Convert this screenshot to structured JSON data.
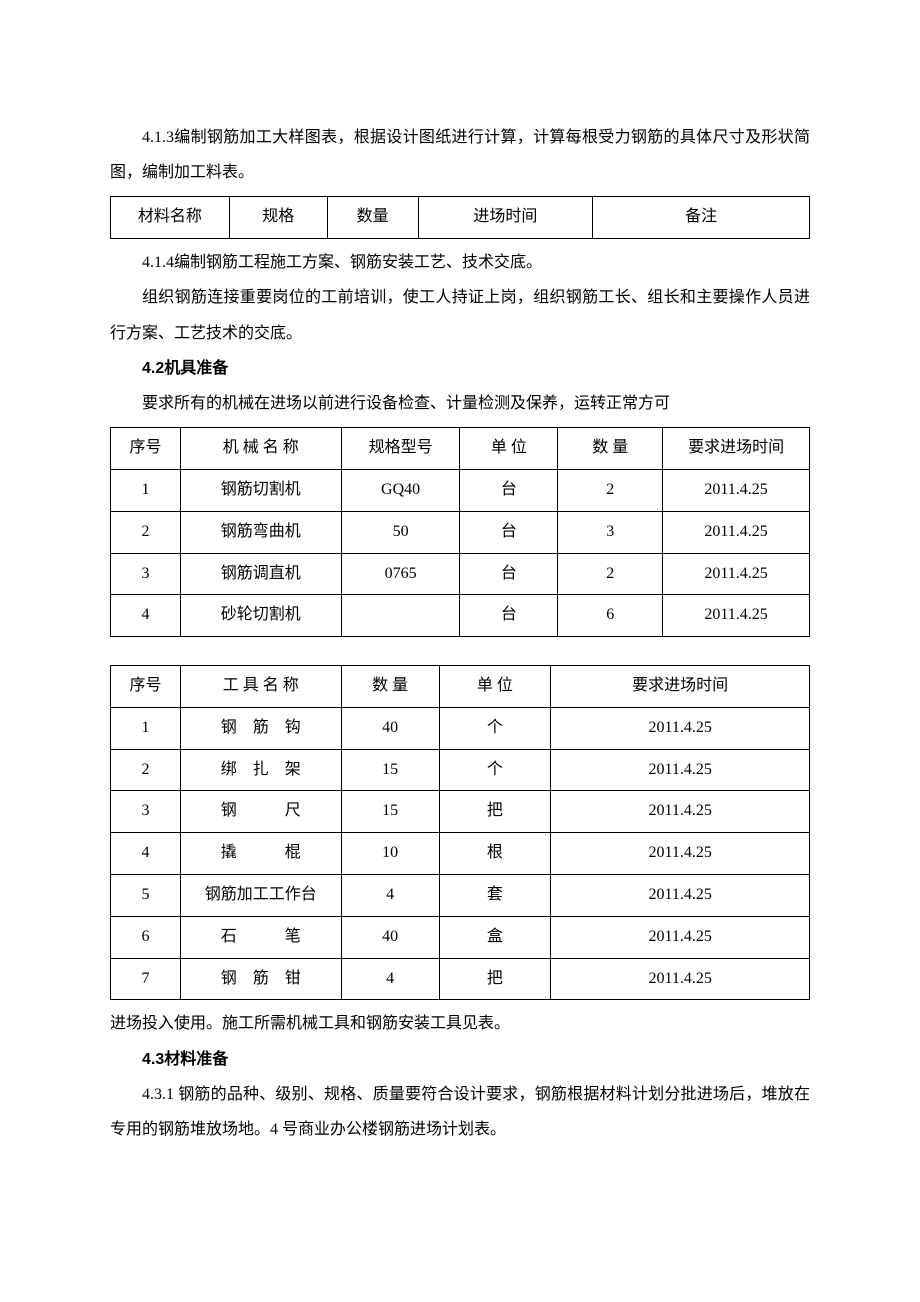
{
  "p413": "4.1.3编制钢筋加工大样图表，根据设计图纸进行计算，计算每根受力钢筋的具体尺寸及形状简图，编制加工料表。",
  "table1": {
    "headers": [
      "材料名称",
      "规格",
      "数量",
      "进场时间",
      "备注"
    ]
  },
  "p414": "4.1.4编制钢筋工程施工方案、钢筋安装工艺、技术交底。",
  "p414b": "组织钢筋连接重要岗位的工前培训，使工人持证上岗，组织钢筋工长、组长和主要操作人员进行方案、工艺技术的交底。",
  "h42": "4.2机具准备",
  "p42": "要求所有的机械在进场以前进行设备检查、计量检测及保养，运转正常方可",
  "table2": {
    "headers": [
      "序号",
      "机 械 名 称",
      "规格型号",
      "单 位",
      "数 量",
      "要求进场时间"
    ],
    "rows": [
      [
        "1",
        "钢筋切割机",
        "GQ40",
        "台",
        "2",
        "2011.4.25"
      ],
      [
        "2",
        "钢筋弯曲机",
        "50",
        "台",
        "3",
        "2011.4.25"
      ],
      [
        "3",
        "钢筋调直机",
        "0765",
        "台",
        "2",
        "2011.4.25"
      ],
      [
        "4",
        "砂轮切割机",
        "",
        "台",
        "6",
        "2011.4.25"
      ]
    ]
  },
  "table3": {
    "headers": [
      "序号",
      "工 具 名 称",
      "数 量",
      "单 位",
      "要求进场时间"
    ],
    "rows": [
      [
        "1",
        "钢　筋　钩",
        "40",
        "个",
        "2011.4.25"
      ],
      [
        "2",
        "绑　扎　架",
        "15",
        "个",
        "2011.4.25"
      ],
      [
        "3",
        "钢　　　尺",
        "15",
        "把",
        "2011.4.25"
      ],
      [
        "4",
        "撬　　　棍",
        "10",
        "根",
        "2011.4.25"
      ],
      [
        "5",
        "钢筋加工工作台",
        "4",
        "套",
        "2011.4.25"
      ],
      [
        "6",
        "石　　　笔",
        "40",
        "盒",
        "2011.4.25"
      ],
      [
        "7",
        "钢　筋　钳",
        "4",
        "把",
        "2011.4.25"
      ]
    ]
  },
  "p42end": "进场投入使用。施工所需机械工具和钢筋安装工具见表。",
  "h43": "4.3材料准备",
  "p431": "4.3.1 钢筋的品种、级别、规格、质量要符合设计要求，钢筋根据材料计划分批进场后，堆放在专用的钢筋堆放场地。4 号商业办公楼钢筋进场计划表。"
}
